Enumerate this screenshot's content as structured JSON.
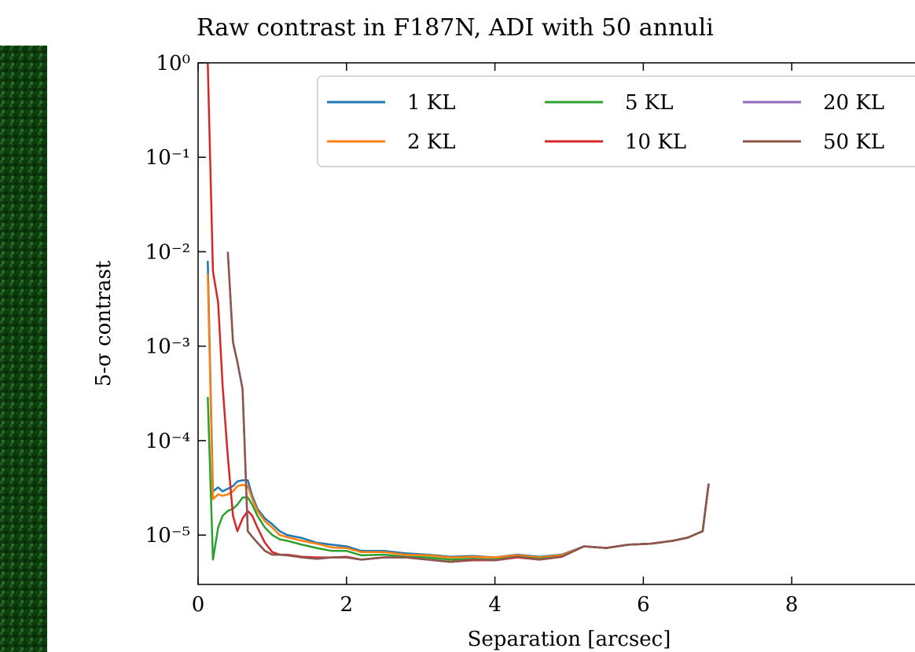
{
  "chart_data": {
    "type": "line",
    "title": "Raw contrast in F187N, ADI with 50 annuli",
    "x_label": "Separation [arcsec]",
    "y_label": "5-σ contrast",
    "log_y": true,
    "legend": "upper right",
    "xlim": [
      0,
      10
    ],
    "ylim": [
      3e-06,
      1
    ],
    "xticks": [
      0,
      2,
      4,
      6,
      8
    ],
    "yticks": [
      {
        "value": 1,
        "label": "10⁰"
      },
      {
        "value": 0.1,
        "label": "10⁻¹"
      },
      {
        "value": 0.01,
        "label": "10⁻²"
      },
      {
        "value": 0.001,
        "label": "10⁻³"
      },
      {
        "value": 0.0001,
        "label": "10⁻⁴"
      },
      {
        "value": 1e-05,
        "label": "10⁻⁵"
      }
    ],
    "x": [
      0.13,
      0.2,
      0.27,
      0.33,
      0.4,
      0.47,
      0.53,
      0.6,
      0.67,
      0.73,
      0.8,
      0.9,
      1.0,
      1.1,
      1.2,
      1.4,
      1.6,
      1.8,
      2.0,
      2.2,
      2.5,
      2.8,
      3.1,
      3.4,
      3.7,
      4.0,
      4.3,
      4.6,
      4.9,
      5.2,
      5.5,
      5.8,
      6.1,
      6.4,
      6.6,
      6.8,
      6.88
    ],
    "series": [
      {
        "name": "1 KL",
        "color": "#1f77b4",
        "values": [
          0.008,
          2.9e-05,
          3.2e-05,
          2.9e-05,
          3.1e-05,
          3.3e-05,
          3.7e-05,
          3.8e-05,
          3.8e-05,
          2.6e-05,
          1.9e-05,
          1.5e-05,
          1.3e-05,
          1.1e-05,
          1e-05,
          9.3e-06,
          8.3e-06,
          7.9e-06,
          7.6e-06,
          6.8e-06,
          6.8e-06,
          6.4e-06,
          6.2e-06,
          5.9e-06,
          6e-06,
          5.8e-06,
          6.2e-06,
          5.9e-06,
          6.2e-06,
          7.6e-06,
          7.3e-06,
          7.9e-06,
          8.1e-06,
          8.7e-06,
          9.4e-06,
          1.1e-05,
          3.5e-05
        ]
      },
      {
        "name": "2 KL",
        "color": "#ff7f0e",
        "values": [
          0.0058,
          2.4e-05,
          2.7e-05,
          2.6e-05,
          2.7e-05,
          2.9e-05,
          3.3e-05,
          3.4e-05,
          3.3e-05,
          2.4e-05,
          1.8e-05,
          1.4e-05,
          1.2e-05,
          1e-05,
          9.5e-06,
          8.7e-06,
          8.1e-06,
          7.4e-06,
          7.3e-06,
          6.6e-06,
          6.6e-06,
          6.2e-06,
          6.1e-06,
          5.8e-06,
          5.9e-06,
          5.8e-06,
          6.1e-06,
          5.8e-06,
          6.1e-06,
          7.6e-06,
          7.3e-06,
          7.9e-06,
          8.1e-06,
          8.7e-06,
          9.4e-06,
          1.1e-05,
          3.5e-05
        ]
      },
      {
        "name": "5 KL",
        "color": "#2ca02c",
        "values": [
          0.00029,
          5.5e-06,
          1.2e-05,
          1.6e-05,
          1.8e-05,
          1.9e-05,
          2.1e-05,
          2.5e-05,
          2.5e-05,
          2.1e-05,
          1.6e-05,
          1.2e-05,
          1e-05,
          9e-06,
          8.7e-06,
          7.9e-06,
          7.3e-06,
          6.8e-06,
          6.8e-06,
          6.1e-06,
          6.2e-06,
          5.9e-06,
          5.8e-06,
          5.5e-06,
          5.6e-06,
          5.5e-06,
          5.9e-06,
          5.6e-06,
          5.9e-06,
          7.6e-06,
          7.3e-06,
          7.9e-06,
          8.1e-06,
          8.7e-06,
          9.4e-06,
          1.1e-05,
          3.5e-05
        ]
      },
      {
        "name": "10 KL",
        "color": "#d62728",
        "values": [
          1,
          0.0062,
          0.0029,
          0.00038,
          6.8e-05,
          1.6e-05,
          1.1e-05,
          1.5e-05,
          1.8e-05,
          1.6e-05,
          1.2e-05,
          8.3e-06,
          6.6e-06,
          6.2e-06,
          6.2e-06,
          5.9e-06,
          5.8e-06,
          5.8e-06,
          5.9e-06,
          5.5e-06,
          5.8e-06,
          5.8e-06,
          5.5e-06,
          5.2e-06,
          5.4e-06,
          5.4e-06,
          5.8e-06,
          5.5e-06,
          5.9e-06,
          7.6e-06,
          7.3e-06,
          7.9e-06,
          8.1e-06,
          8.7e-06,
          9.4e-06,
          1.1e-05,
          3.5e-05
        ]
      },
      {
        "name": "20 KL",
        "color": "#9467bd",
        "values": [
          null,
          null,
          null,
          null,
          0.01,
          0.0011,
          0.00068,
          0.00035,
          1.1e-05,
          9.6e-06,
          8.3e-06,
          6.8e-06,
          6.2e-06,
          6.2e-06,
          6.1e-06,
          5.8e-06,
          5.6e-06,
          5.8e-06,
          5.8e-06,
          5.5e-06,
          5.8e-06,
          5.8e-06,
          5.5e-06,
          5.2e-06,
          5.5e-06,
          5.4e-06,
          5.9e-06,
          5.5e-06,
          5.9e-06,
          7.6e-06,
          7.3e-06,
          7.9e-06,
          8.1e-06,
          8.7e-06,
          9.4e-06,
          1.1e-05,
          3.5e-05
        ]
      },
      {
        "name": "50 KL",
        "color": "#8c564b",
        "values": [
          null,
          null,
          null,
          null,
          0.01,
          0.0011,
          0.00068,
          0.00035,
          1.1e-05,
          9.6e-06,
          8.3e-06,
          6.8e-06,
          6.2e-06,
          6.2e-06,
          6.1e-06,
          5.8e-06,
          5.6e-06,
          5.8e-06,
          5.8e-06,
          5.5e-06,
          5.8e-06,
          5.8e-06,
          5.5e-06,
          5.2e-06,
          5.5e-06,
          5.4e-06,
          5.9e-06,
          5.5e-06,
          5.9e-06,
          7.6e-06,
          7.3e-06,
          7.9e-06,
          8.1e-06,
          8.7e-06,
          9.4e-06,
          1.1e-05,
          3.5e-05
        ]
      }
    ]
  }
}
